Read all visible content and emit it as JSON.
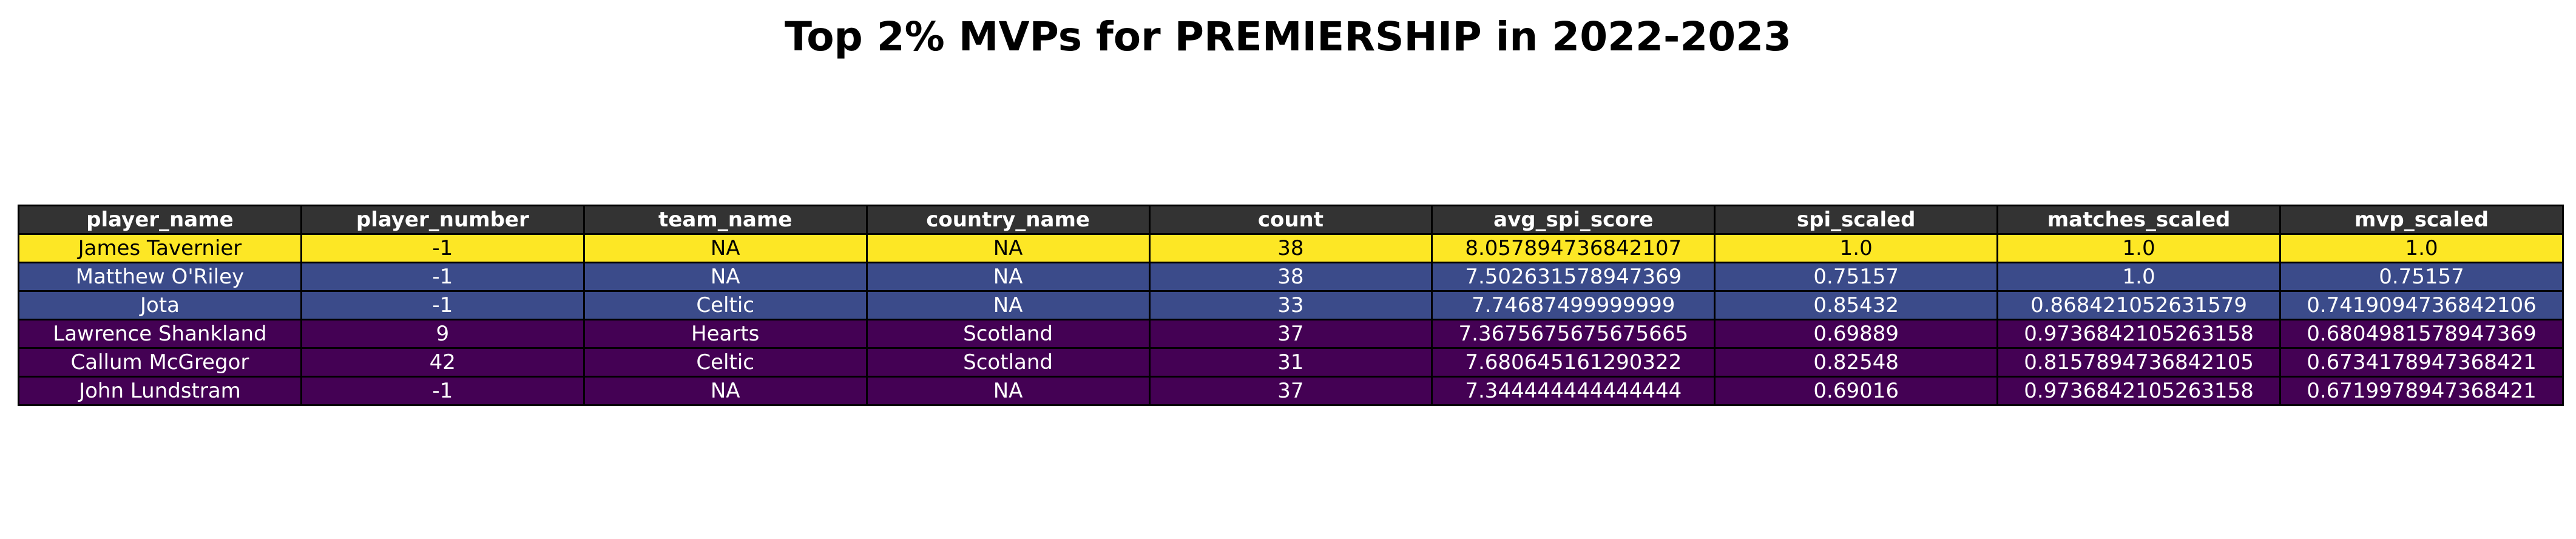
{
  "chart_data": {
    "type": "table",
    "title": "Top 2% MVPs for PREMIERSHIP in 2022-2023",
    "columns": [
      "player_name",
      "player_number",
      "team_name",
      "country_name",
      "count",
      "avg_spi_score",
      "spi_scaled",
      "matches_scaled",
      "mvp_scaled"
    ],
    "rows": [
      [
        "James Tavernier",
        "-1",
        "NA",
        "NA",
        "38",
        "8.057894736842107",
        "1.0",
        "1.0",
        "1.0"
      ],
      [
        "Matthew O'Riley",
        "-1",
        "NA",
        "NA",
        "38",
        "7.502631578947369",
        "0.75157",
        "1.0",
        "0.75157"
      ],
      [
        "Jota",
        "-1",
        "Celtic",
        "NA",
        "33",
        "7.74687499999999",
        "0.85432",
        "0.868421052631579",
        "0.7419094736842106"
      ],
      [
        "Lawrence Shankland",
        "9",
        "Hearts",
        "Scotland",
        "37",
        "7.3675675675675665",
        "0.69889",
        "0.9736842105263158",
        "0.6804981578947369"
      ],
      [
        "Callum McGregor",
        "42",
        "Celtic",
        "Scotland",
        "31",
        "7.680645161290322",
        "0.82548",
        "0.8157894736842105",
        "0.6734178947368421"
      ],
      [
        "John Lundstram",
        "-1",
        "NA",
        "NA",
        "37",
        "7.344444444444444",
        "0.69016",
        "0.9736842105263158",
        "0.6719978947368421"
      ]
    ],
    "header_color": "#333333",
    "row_colors": [
      "#fde725",
      "#3b4b8a",
      "#3b4b8a",
      "#440154",
      "#440154",
      "#440154"
    ],
    "row_text_colors": [
      "#000000",
      "#ffffff",
      "#ffffff",
      "#ffffff",
      "#ffffff",
      "#ffffff"
    ]
  }
}
